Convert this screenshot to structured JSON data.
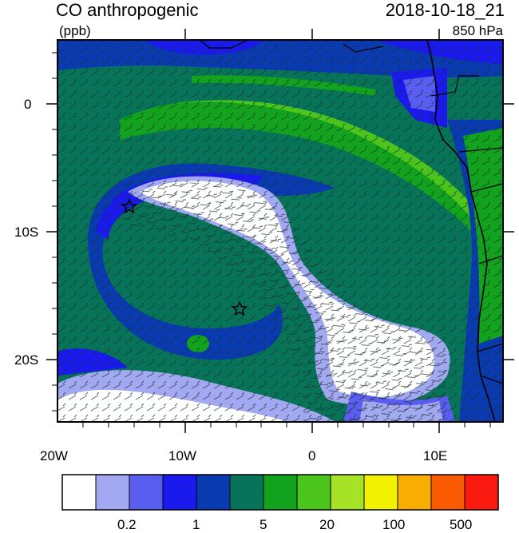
{
  "header": {
    "title": "CO anthropogenic",
    "units": "(ppb)",
    "timestamp": "2018-10-18_21",
    "level": "850 hPa"
  },
  "map": {
    "lat_ticks": [
      "0",
      "10S",
      "20S"
    ],
    "lon_ticks": [
      "20W",
      "10W",
      "0",
      "10E"
    ],
    "markers": [
      {
        "name": "station-star-1",
        "lon": -14.3,
        "lat": -8.2
      },
      {
        "name": "station-star-2",
        "lon": -5.8,
        "lat": -16.0
      }
    ]
  },
  "colorbar": {
    "colors": [
      "#ffffff",
      "#a3a8f2",
      "#5a5ef0",
      "#1a1aee",
      "#0a3ab0",
      "#07745a",
      "#12a21d",
      "#4bc41c",
      "#a6e226",
      "#f2f200",
      "#f9ad00",
      "#fb5b00",
      "#fb1a10"
    ],
    "labels": [
      "0.2",
      "1",
      "5",
      "20",
      "100",
      "500"
    ]
  }
}
